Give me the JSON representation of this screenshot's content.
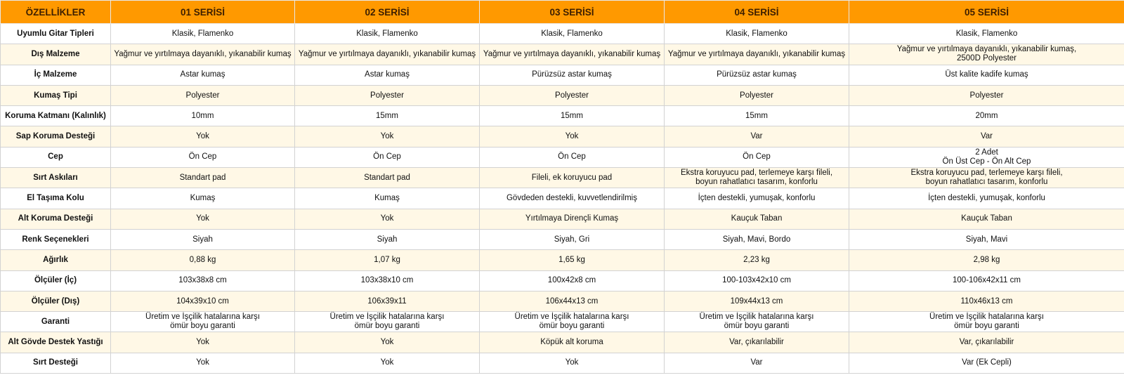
{
  "colors": {
    "header_bg": "#ff9900",
    "header_text": "#3d1f00",
    "alt_row_bg": "#fff8e6"
  },
  "headers": [
    "ÖZELLİKLER",
    "01 SERİSİ",
    "02 SERİSİ",
    "03 SERİSİ",
    "04 SERİSİ",
    "05 SERİSİ"
  ],
  "rows": [
    {
      "label": "Uyumlu Gitar Tipleri",
      "values": [
        "Klasik, Flamenko",
        "Klasik, Flamenko",
        "Klasik, Flamenko",
        "Klasik, Flamenko",
        "Klasik, Flamenko"
      ]
    },
    {
      "label": "Dış Malzeme",
      "values": [
        "Yağmur ve yırtılmaya dayanıklı, yıkanabilir kumaş",
        "Yağmur ve yırtılmaya dayanıklı, yıkanabilir kumaş",
        "Yağmur ve yırtılmaya dayanıklı, yıkanabilir kumaş",
        "Yağmur ve yırtılmaya dayanıklı, yıkanabilir kumaş",
        "Yağmur ve yırtılmaya dayanıklı, yıkanabilir kumaş,\n2500D Polyester"
      ]
    },
    {
      "label": "İç Malzeme",
      "values": [
        "Astar kumaş",
        "Astar kumaş",
        "Pürüzsüz astar kumaş",
        "Pürüzsüz astar kumaş",
        "Üst kalite kadife kumaş"
      ]
    },
    {
      "label": "Kumaş Tipi",
      "values": [
        "Polyester",
        "Polyester",
        "Polyester",
        "Polyester",
        "Polyester"
      ]
    },
    {
      "label": "Koruma Katmanı (Kalınlık)",
      "values": [
        "10mm",
        "15mm",
        "15mm",
        "15mm",
        "20mm"
      ]
    },
    {
      "label": "Sap Koruma Desteği",
      "values": [
        "Yok",
        "Yok",
        "Yok",
        "Var",
        "Var"
      ]
    },
    {
      "label": "Cep",
      "values": [
        "Ön Cep",
        "Ön Cep",
        "Ön Cep",
        "Ön Cep",
        "2 Adet\nÖn Üst Cep - Ön Alt Cep"
      ]
    },
    {
      "label": "Sırt Askıları",
      "values": [
        "Standart pad",
        "Standart pad",
        "Fileli, ek koruyucu pad",
        "Ekstra koruyucu pad, terlemeye karşı fileli,\nboyun rahatlatıcı tasarım, konforlu",
        "Ekstra koruyucu pad, terlemeye karşı fileli,\nboyun rahatlatıcı tasarım, konforlu"
      ]
    },
    {
      "label": "El Taşıma Kolu",
      "values": [
        "Kumaş",
        "Kumaş",
        "Gövdeden destekli, kuvvetlendirilmiş",
        "İçten destekli, yumuşak, konforlu",
        "İçten destekli, yumuşak, konforlu"
      ]
    },
    {
      "label": "Alt Koruma Desteği",
      "values": [
        "Yok",
        "Yok",
        "Yırtılmaya Dirençli Kumaş",
        "Kauçuk Taban",
        "Kauçuk Taban"
      ]
    },
    {
      "label": "Renk Seçenekleri",
      "values": [
        "Siyah",
        "Siyah",
        "Siyah, Gri",
        "Siyah, Mavi, Bordo",
        "Siyah, Mavi"
      ]
    },
    {
      "label": "Ağırlık",
      "values": [
        "0,88 kg",
        "1,07 kg",
        "1,65 kg",
        "2,23 kg",
        "2,98 kg"
      ]
    },
    {
      "label": "Ölçüler (İç)",
      "values": [
        "103x38x8 cm",
        "103x38x10 cm",
        "100x42x8 cm",
        "100-103x42x10 cm",
        "100-106x42x11 cm"
      ]
    },
    {
      "label": "Ölçüler (Dış)",
      "values": [
        "104x39x10 cm",
        "106x39x11",
        "106x44x13 cm",
        "109x44x13 cm",
        "110x46x13 cm"
      ]
    },
    {
      "label": "Garanti",
      "values": [
        "Üretim ve İşçilik hatalarına karşı\nömür boyu garanti",
        "Üretim ve İşçilik hatalarına karşı\nömür boyu garanti",
        "Üretim ve İşçilik hatalarına karşı\nömür boyu garanti",
        "Üretim ve İşçilik hatalarına karşı\nömür boyu garanti",
        "Üretim ve İşçilik hatalarına karşı\nömür boyu garanti"
      ]
    },
    {
      "label": "Alt Gövde Destek Yastığı",
      "values": [
        "Yok",
        "Yok",
        "Köpük alt koruma",
        "Var, çıkarılabilir",
        "Var, çıkarılabilir"
      ]
    },
    {
      "label": "Sırt Desteği",
      "values": [
        "Yok",
        "Yok",
        "Yok",
        "Var",
        "Var (Ek Cepli)"
      ]
    }
  ]
}
